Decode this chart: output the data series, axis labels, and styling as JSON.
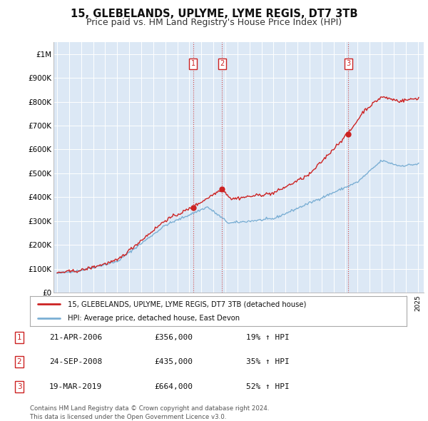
{
  "title": "15, GLEBELANDS, UPLYME, LYME REGIS, DT7 3TB",
  "subtitle": "Price paid vs. HM Land Registry's House Price Index (HPI)",
  "ylim": [
    0,
    1050000
  ],
  "yticks": [
    0,
    100000,
    200000,
    300000,
    400000,
    500000,
    600000,
    700000,
    800000,
    900000,
    1000000
  ],
  "ytick_labels": [
    "£0",
    "£100K",
    "£200K",
    "£300K",
    "£400K",
    "£500K",
    "£600K",
    "£700K",
    "£800K",
    "£900K",
    "£1M"
  ],
  "sale_year_floats": [
    2006.304,
    2008.728,
    2019.214
  ],
  "sale_prices": [
    356000,
    435000,
    664000
  ],
  "sale_labels": [
    "1",
    "2",
    "3"
  ],
  "hpi_color": "#7bafd4",
  "price_color": "#cc2222",
  "legend_line1": "15, GLEBELANDS, UPLYME, LYME REGIS, DT7 3TB (detached house)",
  "legend_line2": "HPI: Average price, detached house, East Devon",
  "table_rows": [
    [
      "1",
      "21-APR-2006",
      "£356,000",
      "19% ↑ HPI"
    ],
    [
      "2",
      "24-SEP-2008",
      "£435,000",
      "35% ↑ HPI"
    ],
    [
      "3",
      "19-MAR-2019",
      "£664,000",
      "52% ↑ HPI"
    ]
  ],
  "footer": "Contains HM Land Registry data © Crown copyright and database right 2024.\nThis data is licensed under the Open Government Licence v3.0.",
  "background_color": "#ffffff",
  "plot_bg_color": "#dce8f5",
  "grid_color": "#ffffff",
  "title_fontsize": 10.5,
  "subtitle_fontsize": 9
}
